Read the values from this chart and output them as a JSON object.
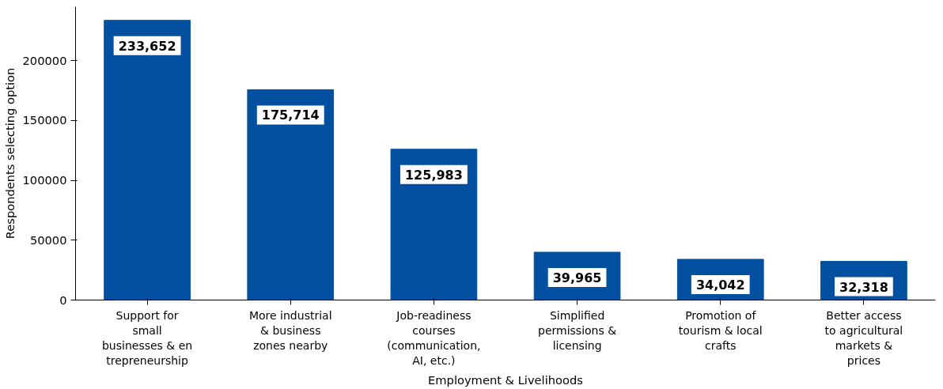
{
  "chart_data": {
    "type": "bar",
    "xlabel": "Employment & Livelihoods",
    "ylabel": "Respondents selecting option",
    "categories": [
      "Support for\nsmall\nbusinesses & en\ntrepreneurship",
      "More industrial\n& business\nzones nearby",
      "Job-readiness\ncourses\n(communication,\nAI, etc.)",
      "Simplified\npermissions &\nlicensing",
      "Promotion of\ntourism & local\ncrafts",
      "Better access\nto agricultural\nmarkets &\nprices"
    ],
    "values": [
      233652,
      175714,
      125983,
      39965,
      34042,
      32318
    ],
    "value_labels": [
      "233,652",
      "175,714",
      "125,983",
      "39,965",
      "34,042",
      "32,318"
    ],
    "color": "#0350a0",
    "ylim": [
      0,
      245000
    ],
    "yticks": [
      0,
      50000,
      100000,
      150000,
      200000
    ],
    "grid": false
  }
}
